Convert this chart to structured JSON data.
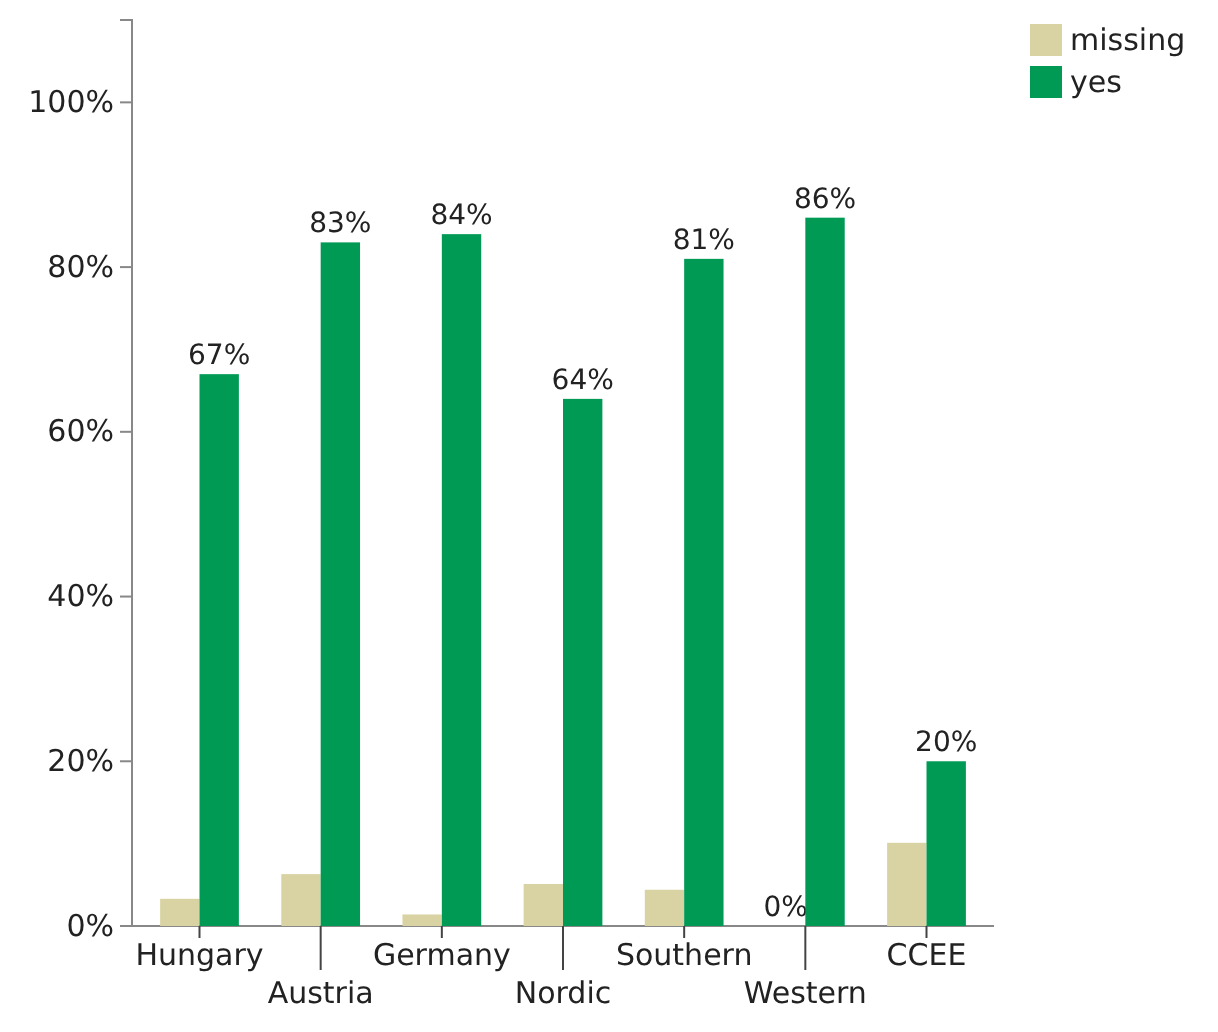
{
  "chart_data": {
    "type": "bar",
    "categories": [
      "Hungary",
      "Austria",
      "Germany",
      "Nordic",
      "Southern",
      "Western",
      "CCEE"
    ],
    "series": [
      {
        "name": "missing",
        "color": "#d9d3a3",
        "values": [
          3.3,
          6.3,
          1.4,
          5.1,
          4.4,
          0,
          10.1
        ],
        "value_labels": [
          null,
          null,
          null,
          null,
          null,
          "0%",
          null
        ]
      },
      {
        "name": "yes",
        "color": "#009a55",
        "values": [
          67,
          83,
          84,
          64,
          81,
          86,
          20
        ],
        "value_labels": [
          "67%",
          "83%",
          "84%",
          "64%",
          "81%",
          "86%",
          "20%"
        ]
      }
    ],
    "ylim": [
      0,
      110
    ],
    "yticks": [
      {
        "value": 0,
        "label": "0%"
      },
      {
        "value": 20,
        "label": "20%"
      },
      {
        "value": 40,
        "label": "40%"
      },
      {
        "value": 60,
        "label": "60%"
      },
      {
        "value": 80,
        "label": "80%"
      },
      {
        "value": 100,
        "label": "100%"
      }
    ],
    "grid": false,
    "legend": "top right"
  }
}
